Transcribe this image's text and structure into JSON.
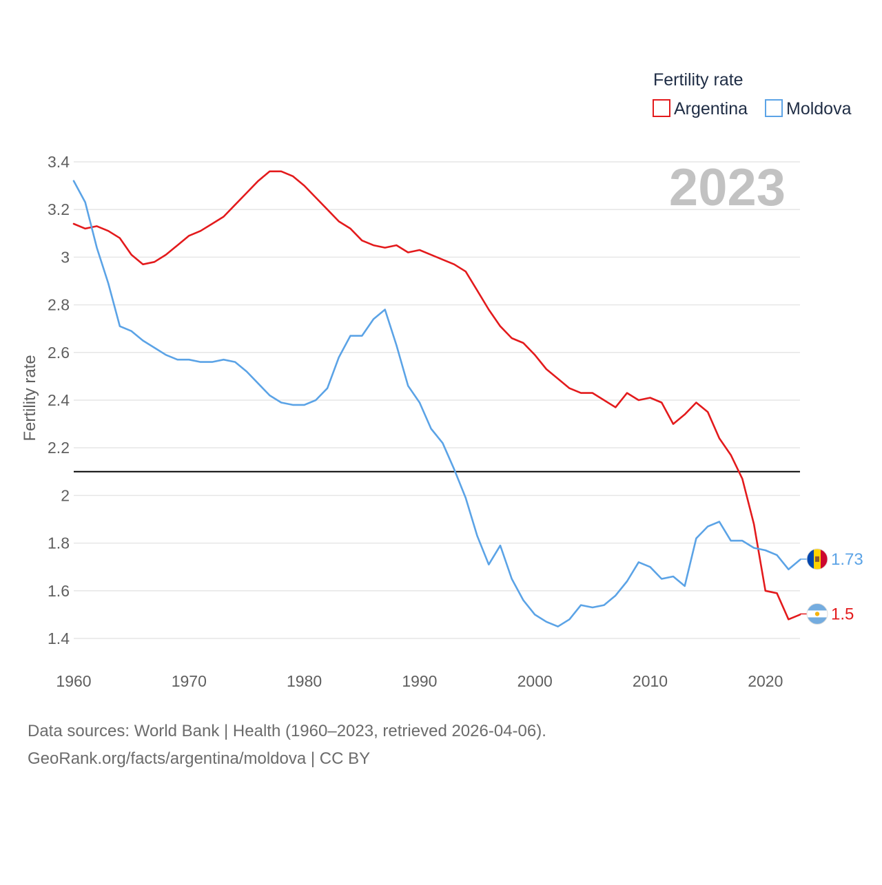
{
  "chart_data": {
    "type": "line",
    "title": "",
    "ylabel": "Fertility rate",
    "xlabel": "",
    "xlim": [
      1960,
      2023
    ],
    "ylim": [
      1.3,
      3.45
    ],
    "x_ticks": [
      1960,
      1970,
      1980,
      1990,
      2000,
      2010,
      2020
    ],
    "y_ticks": [
      1.4,
      1.6,
      1.8,
      2,
      2.2,
      2.4,
      2.6,
      2.8,
      3,
      3.2,
      3.4
    ],
    "y_tick_labels": [
      "1.4",
      "1.6",
      "1.8",
      "2",
      "2.2",
      "2.4",
      "2.6",
      "2.8",
      "3",
      "3.2",
      "3.4"
    ],
    "x_tick_labels": [
      "1960",
      "1970",
      "1980",
      "1990",
      "2000",
      "2010",
      "2020"
    ],
    "reference_line": 2.1,
    "year_label": "2023",
    "legend": {
      "title": "Fertility rate",
      "position": "top-right"
    },
    "x": [
      1960,
      1961,
      1962,
      1963,
      1964,
      1965,
      1966,
      1967,
      1968,
      1969,
      1970,
      1971,
      1972,
      1973,
      1974,
      1975,
      1976,
      1977,
      1978,
      1979,
      1980,
      1981,
      1982,
      1983,
      1984,
      1985,
      1986,
      1987,
      1988,
      1989,
      1990,
      1991,
      1992,
      1993,
      1994,
      1995,
      1996,
      1997,
      1998,
      1999,
      2000,
      2001,
      2002,
      2003,
      2004,
      2005,
      2006,
      2007,
      2008,
      2009,
      2010,
      2011,
      2012,
      2013,
      2014,
      2015,
      2016,
      2017,
      2018,
      2019,
      2020,
      2021,
      2022,
      2023
    ],
    "series": [
      {
        "name": "Argentina",
        "color": "#e31a1c",
        "end_label": "1.5",
        "flag": "argentina-flag",
        "values": [
          3.14,
          3.12,
          3.13,
          3.11,
          3.08,
          3.01,
          2.97,
          2.98,
          3.01,
          3.05,
          3.09,
          3.11,
          3.14,
          3.17,
          3.22,
          3.27,
          3.32,
          3.36,
          3.36,
          3.34,
          3.3,
          3.25,
          3.2,
          3.15,
          3.12,
          3.07,
          3.05,
          3.04,
          3.05,
          3.02,
          3.03,
          3.01,
          2.99,
          2.97,
          2.94,
          2.86,
          2.78,
          2.71,
          2.66,
          2.64,
          2.59,
          2.53,
          2.49,
          2.45,
          2.43,
          2.43,
          2.4,
          2.37,
          2.43,
          2.4,
          2.41,
          2.39,
          2.3,
          2.34,
          2.39,
          2.35,
          2.24,
          2.17,
          2.07,
          1.88,
          1.6,
          1.59,
          1.48,
          1.5
        ]
      },
      {
        "name": "Moldova",
        "color": "#5ba3e6",
        "end_label": "1.73",
        "flag": "moldova-flag",
        "values": [
          3.32,
          3.23,
          3.04,
          2.89,
          2.71,
          2.69,
          2.65,
          2.62,
          2.59,
          2.57,
          2.57,
          2.56,
          2.56,
          2.57,
          2.56,
          2.52,
          2.47,
          2.42,
          2.39,
          2.38,
          2.38,
          2.4,
          2.45,
          2.58,
          2.67,
          2.67,
          2.74,
          2.78,
          2.63,
          2.46,
          2.39,
          2.28,
          2.22,
          2.11,
          1.99,
          1.83,
          1.71,
          1.79,
          1.65,
          1.56,
          1.5,
          1.47,
          1.45,
          1.48,
          1.54,
          1.53,
          1.54,
          1.58,
          1.64,
          1.72,
          1.7,
          1.65,
          1.66,
          1.62,
          1.82,
          1.87,
          1.89,
          1.81,
          1.81,
          1.78,
          1.77,
          1.75,
          1.69,
          1.73
        ]
      }
    ]
  },
  "source": {
    "line1": "Data sources: World Bank | Health (1960–2023, retrieved 2026-04-06).",
    "line2": "GeoRank.org/facts/argentina/moldova | CC BY"
  }
}
